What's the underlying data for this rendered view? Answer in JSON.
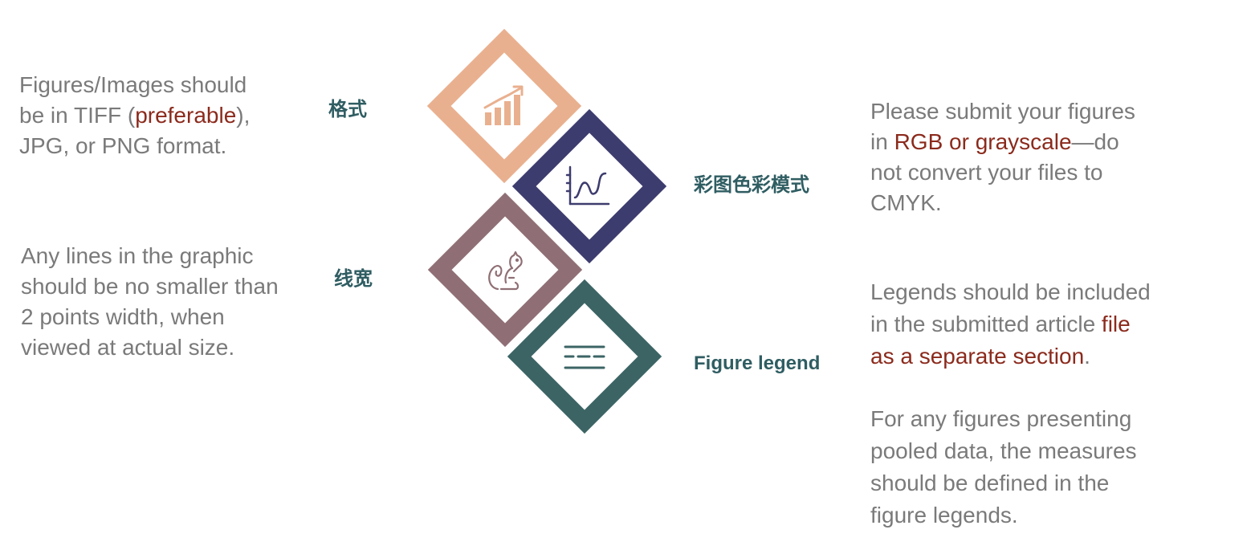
{
  "colors": {
    "peach": "#e9b08f",
    "navy": "#3d3c6e",
    "mauve": "#8f6f75",
    "teal": "#3c6465",
    "label": "#2f5d62",
    "highlight": "#8b2a1c",
    "body_text": "#7a7a7a"
  },
  "left_top": {
    "line1": "Figures/Images should",
    "line2_a": "be in TIFF (",
    "line2_hl": "preferable",
    "line2_b": "),",
    "line3": "JPG, or PNG format."
  },
  "left_bottom": {
    "line1": "Any lines in the graphic",
    "line2": "should be no smaller than",
    "line3": "2 points width, when",
    "line4": "viewed at actual size."
  },
  "labels": {
    "format": "格式",
    "line_width": "线宽",
    "color_mode": "彩图色彩模式",
    "figure_legend": "Figure legend"
  },
  "right_top": {
    "line1": "Please submit your figures",
    "line2_a": "in ",
    "line2_hl": "RGB or grayscale",
    "line2_b": "—do",
    "line3": "not convert your files to",
    "line4": "CMYK."
  },
  "right_middle": {
    "line1": "Legends should be included",
    "line2_a": "in the submitted article ",
    "line2_hl": "file",
    "line3_hl": "as a separate section",
    "line3_b": "."
  },
  "right_bottom": {
    "line1": "For any figures presenting",
    "line2": "pooled data, the measures",
    "line3": "should be defined in the",
    "line4": "figure legends."
  },
  "icons": {
    "format": "bar-chart-growth-icon",
    "color_mode": "line-graph-icon",
    "line_width": "squirrel-icon",
    "figure_legend": "text-lines-icon"
  }
}
